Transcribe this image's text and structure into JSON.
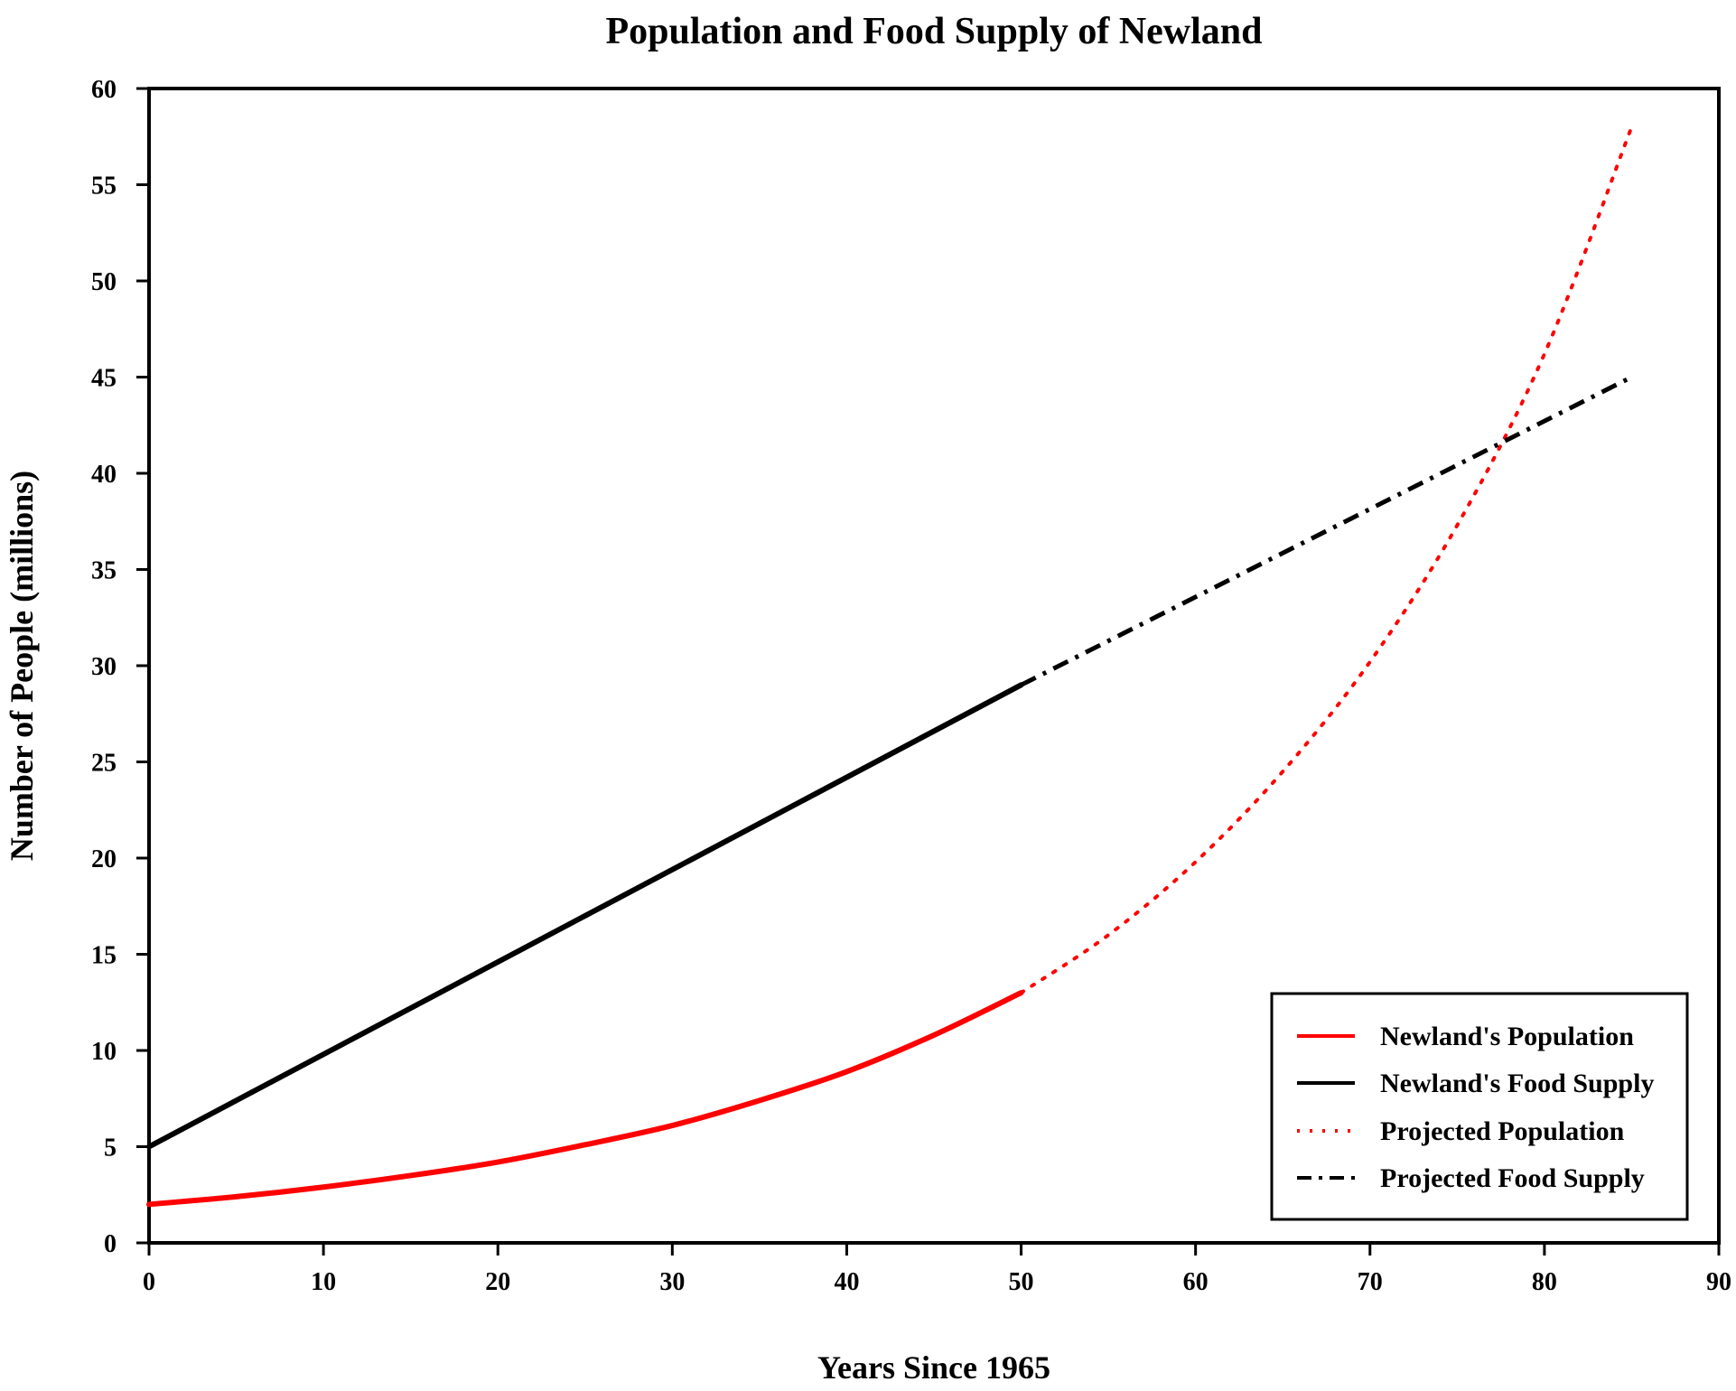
{
  "chart_data": {
    "type": "line",
    "title": "Population and Food Supply of Newland",
    "xlabel": "Years Since 1965",
    "ylabel": "Number of People (millions)",
    "xlim": [
      0,
      90
    ],
    "ylim": [
      0,
      60
    ],
    "x_ticks": [
      0,
      10,
      20,
      30,
      40,
      50,
      60,
      70,
      80,
      90
    ],
    "y_ticks": [
      0,
      5,
      10,
      15,
      20,
      25,
      30,
      35,
      40,
      45,
      50,
      55,
      60
    ],
    "grid": false,
    "legend_position": "bottom-right",
    "series": [
      {
        "name": "Newland's Population",
        "style": "solid",
        "color": "#ff0000",
        "x": [
          0,
          5,
          10,
          15,
          20,
          25,
          30,
          35,
          40,
          45,
          50
        ],
        "y": [
          2.0,
          2.4,
          2.9,
          3.5,
          4.2,
          5.1,
          6.1,
          7.4,
          8.9,
          10.8,
          13.0
        ]
      },
      {
        "name": "Newland's Food Supply",
        "style": "solid",
        "color": "#000000",
        "x": [
          0,
          50
        ],
        "y": [
          5.0,
          29.0
        ]
      },
      {
        "name": "Projected Population",
        "style": "dotted",
        "color": "#ff0000",
        "x": [
          50,
          55,
          60,
          65,
          70,
          75,
          80,
          85
        ],
        "y": [
          13.0,
          16.0,
          19.8,
          24.5,
          30.2,
          37.3,
          46.2,
          58.0
        ]
      },
      {
        "name": "Projected Food Supply",
        "style": "dashdot",
        "color": "#000000",
        "x": [
          50,
          85
        ],
        "y": [
          29.0,
          45.0
        ]
      }
    ]
  }
}
